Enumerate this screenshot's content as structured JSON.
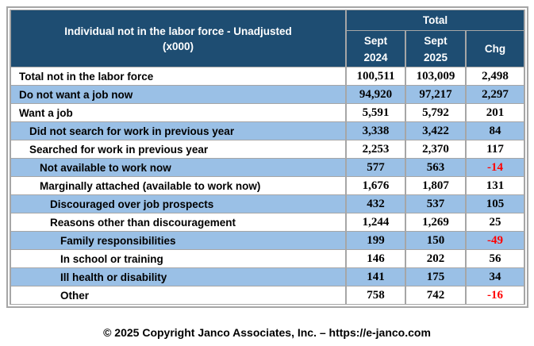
{
  "table": {
    "title_line1": "Individual not in the labor force - Unadjusted",
    "title_line2": "(x000)",
    "group_header": "Total",
    "columns": [
      {
        "line1": "Sept",
        "line2": "2024"
      },
      {
        "line1": "Sept",
        "line2": "2025"
      },
      {
        "line1": "Chg",
        "line2": ""
      }
    ],
    "rows": [
      {
        "label": "Total not in the labor force",
        "indent": 0,
        "shaded": false,
        "sept_2024": "100,511",
        "sept_2025": "103,009",
        "chg": "2,498",
        "chg_negative": false
      },
      {
        "label": "Do not want a job now",
        "indent": 0,
        "shaded": true,
        "sept_2024": "94,920",
        "sept_2025": "97,217",
        "chg": "2,297",
        "chg_negative": false
      },
      {
        "label": "Want a job",
        "indent": 0,
        "shaded": false,
        "sept_2024": "5,591",
        "sept_2025": "5,792",
        "chg": "201",
        "chg_negative": false
      },
      {
        "label": "Did not search for work in previous year",
        "indent": 1,
        "shaded": true,
        "sept_2024": "3,338",
        "sept_2025": "3,422",
        "chg": "84",
        "chg_negative": false
      },
      {
        "label": "Searched for work in previous year",
        "indent": 1,
        "shaded": false,
        "sept_2024": "2,253",
        "sept_2025": "2,370",
        "chg": "117",
        "chg_negative": false
      },
      {
        "label": "Not available to work now",
        "indent": 2,
        "shaded": true,
        "sept_2024": "577",
        "sept_2025": "563",
        "chg": "-14",
        "chg_negative": true
      },
      {
        "label": "Marginally attached (available to work now)",
        "indent": 2,
        "shaded": false,
        "sept_2024": "1,676",
        "sept_2025": "1,807",
        "chg": "131",
        "chg_negative": false
      },
      {
        "label": "Discouraged over job prospects",
        "indent": 3,
        "shaded": true,
        "sept_2024": "432",
        "sept_2025": "537",
        "chg": "105",
        "chg_negative": false
      },
      {
        "label": "Reasons other than discouragement",
        "indent": 3,
        "shaded": false,
        "sept_2024": "1,244",
        "sept_2025": "1,269",
        "chg": "25",
        "chg_negative": false
      },
      {
        "label": "Family responsibilities",
        "indent": 4,
        "shaded": true,
        "sept_2024": "199",
        "sept_2025": "150",
        "chg": "-49",
        "chg_negative": true
      },
      {
        "label": "In school or training",
        "indent": 4,
        "shaded": false,
        "sept_2024": "146",
        "sept_2025": "202",
        "chg": "56",
        "chg_negative": false
      },
      {
        "label": "Ill health or disability",
        "indent": 4,
        "shaded": true,
        "sept_2024": "141",
        "sept_2025": "175",
        "chg": "34",
        "chg_negative": false
      },
      {
        "label": "Other",
        "indent": 4,
        "shaded": false,
        "sept_2024": "758",
        "sept_2025": "742",
        "chg": "-16",
        "chg_negative": true
      }
    ]
  },
  "footer": {
    "text": "© 2025 Copyright Janco Associates, Inc. – https://e-janco.com"
  },
  "colors": {
    "header_bg": "#1E4D72",
    "header_text": "#FFFFFF",
    "row_shaded": "#9AC0E6",
    "border_gray": "#A6A6A6",
    "body_text": "#000000",
    "negative_red": "#FF0000"
  },
  "chart_data": {
    "type": "table",
    "title": "Individual not in the labor force - Unadjusted (x000)",
    "column_group": "Total",
    "columns": [
      "Sept 2024",
      "Sept 2025",
      "Chg"
    ],
    "rows": [
      {
        "label": "Total not in the labor force",
        "indent": 0,
        "values": [
          100511,
          103009,
          2498
        ]
      },
      {
        "label": "Do not want a job now",
        "indent": 0,
        "values": [
          94920,
          97217,
          2297
        ]
      },
      {
        "label": "Want a job",
        "indent": 0,
        "values": [
          5591,
          5792,
          201
        ]
      },
      {
        "label": "Did not search for work in previous year",
        "indent": 1,
        "values": [
          3338,
          3422,
          84
        ]
      },
      {
        "label": "Searched for work in previous year",
        "indent": 1,
        "values": [
          2253,
          2370,
          117
        ]
      },
      {
        "label": "Not available to work now",
        "indent": 2,
        "values": [
          577,
          563,
          -14
        ]
      },
      {
        "label": "Marginally attached (available to work now)",
        "indent": 2,
        "values": [
          1676,
          1807,
          131
        ]
      },
      {
        "label": "Discouraged over job prospects",
        "indent": 3,
        "values": [
          432,
          537,
          105
        ]
      },
      {
        "label": "Reasons other than discouragement",
        "indent": 3,
        "values": [
          1244,
          1269,
          25
        ]
      },
      {
        "label": "Family responsibilities",
        "indent": 4,
        "values": [
          199,
          150,
          -49
        ]
      },
      {
        "label": "In school or training",
        "indent": 4,
        "values": [
          146,
          202,
          56
        ]
      },
      {
        "label": "Ill health or disability",
        "indent": 4,
        "values": [
          141,
          175,
          34
        ]
      },
      {
        "label": "Other",
        "indent": 4,
        "values": [
          758,
          742,
          -16
        ]
      }
    ],
    "footnote": "© 2025 Copyright Janco Associates, Inc. – https://e-janco.com"
  }
}
